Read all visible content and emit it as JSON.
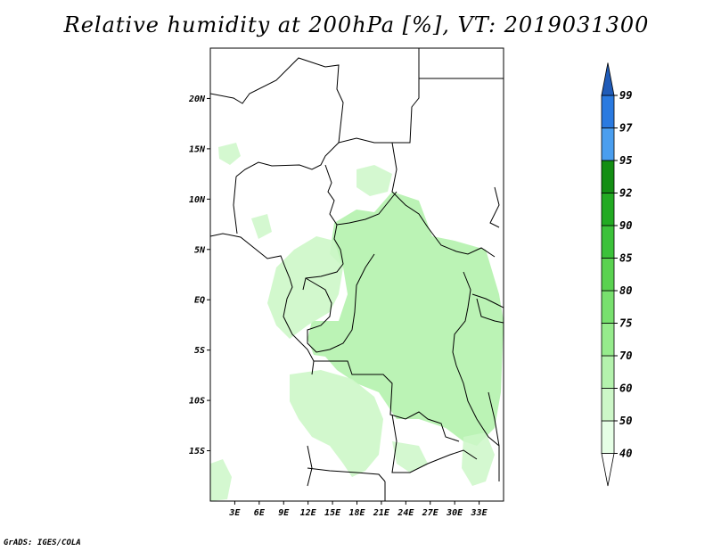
{
  "title": "Relative humidity at 200hPa [%], VT: 2019031300",
  "credit": "GrADS: IGES/COLA",
  "map": {
    "lon_range": [
      0,
      36
    ],
    "lat_range": [
      -20,
      25
    ],
    "lat_ticks": [
      {
        "value": 20,
        "label": "20N"
      },
      {
        "value": 15,
        "label": "15N"
      },
      {
        "value": 10,
        "label": "10N"
      },
      {
        "value": 5,
        "label": "5N"
      },
      {
        "value": 0,
        "label": "EQ"
      },
      {
        "value": -5,
        "label": "5S"
      },
      {
        "value": -10,
        "label": "10S"
      },
      {
        "value": -15,
        "label": "15S"
      }
    ],
    "lon_ticks": [
      {
        "value": 3,
        "label": "3E"
      },
      {
        "value": 6,
        "label": "6E"
      },
      {
        "value": 9,
        "label": "9E"
      },
      {
        "value": 12,
        "label": "12E"
      },
      {
        "value": 15,
        "label": "15E"
      },
      {
        "value": 18,
        "label": "18E"
      },
      {
        "value": 21,
        "label": "21E"
      },
      {
        "value": 24,
        "label": "24E"
      },
      {
        "value": 27,
        "label": "27E"
      },
      {
        "value": 30,
        "label": "30E"
      },
      {
        "value": 33,
        "label": "33E"
      }
    ]
  },
  "colorbar": {
    "levels": [
      "40",
      "50",
      "60",
      "70",
      "75",
      "80",
      "85",
      "90",
      "92",
      "95",
      "97",
      "99"
    ],
    "colors": [
      "#ffffff",
      "#e6ffe6",
      "#cdf7c8",
      "#b4f2ad",
      "#96eb8c",
      "#78e06e",
      "#5ad250",
      "#3cc23a",
      "#22aa22",
      "#138e13",
      "#4a9eef",
      "#2a7ae0",
      "#1f5bb8"
    ]
  }
}
